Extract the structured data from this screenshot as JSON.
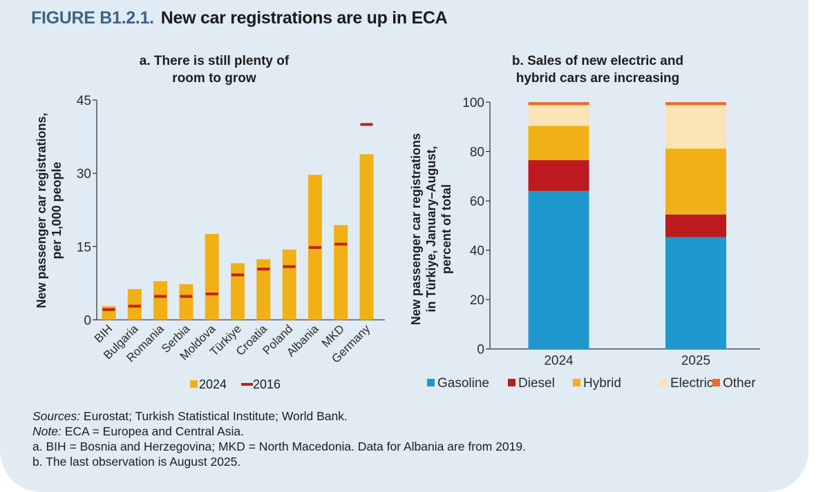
{
  "figure": {
    "number": "FIGURE B1.2.1.",
    "title": "New car registrations are up in ECA"
  },
  "chart_data": [
    {
      "type": "bar",
      "title_line1": "a. There is still plenty of",
      "title_line2": "room to grow",
      "ylabel_line1": "New passenger car registrations,",
      "ylabel_line2": "per 1,000 people",
      "xlabel": "",
      "ylim": [
        0,
        45
      ],
      "yticks": [
        0,
        15,
        30,
        45
      ],
      "grid": false,
      "categories": [
        "BIH",
        "Bulgaria",
        "Romania",
        "Serbia",
        "Moldova",
        "Türkiye",
        "Croatia",
        "Poland",
        "Albania",
        "MKD",
        "Germany"
      ],
      "series": [
        {
          "name": "2024",
          "kind": "bar",
          "color": "#f0b016",
          "values": [
            2.8,
            6.3,
            7.9,
            7.3,
            17.6,
            11.6,
            12.4,
            14.4,
            29.7,
            19.4,
            33.9
          ]
        },
        {
          "name": "2016",
          "kind": "marker",
          "color": "#c0201c",
          "values": [
            2.1,
            2.8,
            4.8,
            4.8,
            5.3,
            9.2,
            10.4,
            10.9,
            14.8,
            15.5,
            40.0
          ]
        }
      ],
      "legend": {
        "placement": "bottom",
        "items": [
          {
            "label": "2024",
            "color": "#f0b016",
            "shape": "square"
          },
          {
            "label": "2016",
            "color": "#c0201c",
            "shape": "dash"
          }
        ]
      }
    },
    {
      "type": "bar",
      "stacked": true,
      "title_line1": "b. Sales of new electric and",
      "title_line2": "hybrid cars are increasing",
      "ylabel_line1": "New passenger car registrations",
      "ylabel_line2": "in Türkiye, January–August,",
      "ylabel_line3": "percent of total",
      "xlabel": "",
      "ylim": [
        0,
        100
      ],
      "yticks": [
        0,
        20,
        40,
        60,
        80,
        100
      ],
      "grid": false,
      "categories": [
        "2024",
        "2025"
      ],
      "series": [
        {
          "name": "Gasoline",
          "color": "#1f98cd",
          "values": [
            64.0,
            45.3
          ]
        },
        {
          "name": "Diesel",
          "color": "#bd1a1f",
          "values": [
            12.5,
            9.2
          ]
        },
        {
          "name": "Hybrid",
          "color": "#f0b016",
          "values": [
            13.9,
            26.7
          ]
        },
        {
          "name": "Electric",
          "color": "#fbe3b5",
          "values": [
            8.4,
            17.6
          ]
        },
        {
          "name": "Other",
          "color": "#e66d2a",
          "values": [
            1.2,
            1.2
          ]
        }
      ],
      "legend": {
        "placement": "bottom"
      }
    }
  ],
  "notes": {
    "sources_label": "Sources:",
    "sources_text": " Eurostat; Turkish Statistical Institute; World Bank.",
    "note_label": "Note:",
    "note_text": " ECA = Europea and Central Asia.",
    "line_a": "a. BIH = Bosnia and Herzegovina; MKD = North Macedonia. Data for Albania are from 2019.",
    "line_b": "b. The last observation is August 2025."
  }
}
